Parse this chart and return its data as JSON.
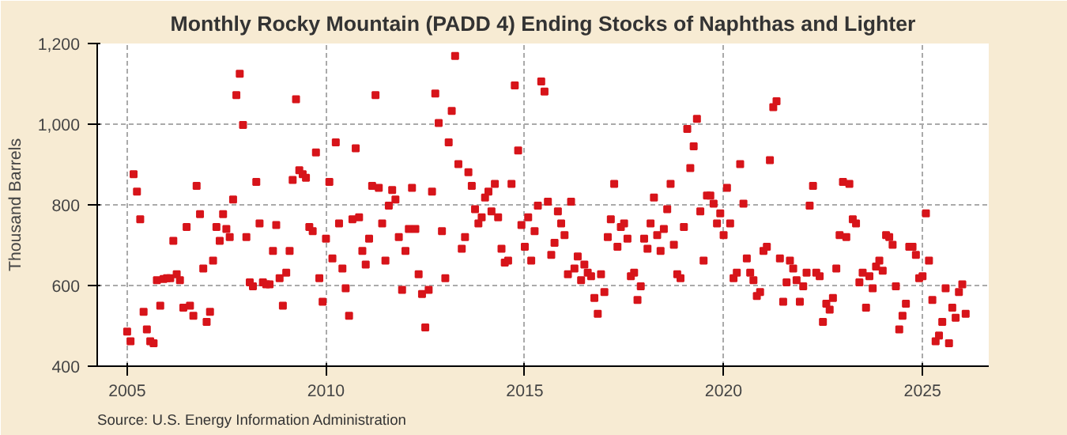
{
  "chart_data": {
    "type": "scatter",
    "title": "Monthly Rocky Mountain (PADD 4) Ending Stocks of Naphthas and Lighter",
    "ylabel": "Thousand Barrels",
    "annotations": [
      "Source: U.S. Energy Information Administration"
    ],
    "x": [
      "2005-01",
      "2005-02",
      "2005-03",
      "2005-04",
      "2005-05",
      "2005-06",
      "2005-07",
      "2005-08",
      "2005-09",
      "2005-10",
      "2005-11",
      "2005-12",
      "2006-01",
      "2006-02",
      "2006-03",
      "2006-04",
      "2006-05",
      "2006-06",
      "2006-07",
      "2006-08",
      "2006-09",
      "2006-10",
      "2006-11",
      "2006-12",
      "2007-01",
      "2007-02",
      "2007-03",
      "2007-04",
      "2007-05",
      "2007-06",
      "2007-07",
      "2007-08",
      "2007-09",
      "2007-10",
      "2007-11",
      "2007-12",
      "2008-01",
      "2008-02",
      "2008-03",
      "2008-04",
      "2008-05",
      "2008-06",
      "2008-07",
      "2008-08",
      "2008-09",
      "2008-10",
      "2008-11",
      "2008-12",
      "2009-01",
      "2009-02",
      "2009-03",
      "2009-04",
      "2009-05",
      "2009-06",
      "2009-07",
      "2009-08",
      "2009-09",
      "2009-10",
      "2009-11",
      "2009-12",
      "2010-01",
      "2010-02",
      "2010-03",
      "2010-04",
      "2010-05",
      "2010-06",
      "2010-07",
      "2010-08",
      "2010-09",
      "2010-10",
      "2010-11",
      "2010-12",
      "2011-01",
      "2011-02",
      "2011-03",
      "2011-04",
      "2011-05",
      "2011-06",
      "2011-07",
      "2011-08",
      "2011-09",
      "2011-10",
      "2011-11",
      "2011-12",
      "2012-01",
      "2012-02",
      "2012-03",
      "2012-04",
      "2012-05",
      "2012-06",
      "2012-07",
      "2012-08",
      "2012-09",
      "2012-10",
      "2012-11",
      "2012-12",
      "2013-01",
      "2013-02",
      "2013-03",
      "2013-04",
      "2013-05",
      "2013-06",
      "2013-07",
      "2013-08",
      "2013-09",
      "2013-10",
      "2013-11",
      "2013-12",
      "2014-01",
      "2014-02",
      "2014-03",
      "2014-04",
      "2014-05",
      "2014-06",
      "2014-07",
      "2014-08",
      "2014-09",
      "2014-10",
      "2014-11",
      "2014-12",
      "2015-01",
      "2015-02",
      "2015-03",
      "2015-04",
      "2015-05",
      "2015-06",
      "2015-07",
      "2015-08",
      "2015-09",
      "2015-10",
      "2015-11",
      "2015-12",
      "2016-01",
      "2016-02",
      "2016-03",
      "2016-04",
      "2016-05",
      "2016-06",
      "2016-07",
      "2016-08",
      "2016-09",
      "2016-10",
      "2016-11",
      "2016-12",
      "2017-01",
      "2017-02",
      "2017-03",
      "2017-04",
      "2017-05",
      "2017-06",
      "2017-07",
      "2017-08",
      "2017-09",
      "2017-10",
      "2017-11",
      "2017-12",
      "2018-01",
      "2018-02",
      "2018-03",
      "2018-04",
      "2018-05",
      "2018-06",
      "2018-07",
      "2018-08",
      "2018-09",
      "2018-10",
      "2018-11",
      "2018-12",
      "2019-01",
      "2019-02",
      "2019-03",
      "2019-04",
      "2019-05",
      "2019-06",
      "2019-07",
      "2019-08",
      "2019-09",
      "2019-10",
      "2019-11",
      "2019-12",
      "2020-01",
      "2020-02",
      "2020-03",
      "2020-04",
      "2020-05",
      "2020-06",
      "2020-07",
      "2020-08",
      "2020-09",
      "2020-10",
      "2020-11",
      "2020-12",
      "2021-01",
      "2021-02",
      "2021-03",
      "2021-04",
      "2021-05",
      "2021-06",
      "2021-07",
      "2021-08",
      "2021-09",
      "2021-10",
      "2021-11",
      "2021-12",
      "2022-01",
      "2022-02",
      "2022-03",
      "2022-04",
      "2022-05",
      "2022-06",
      "2022-07",
      "2022-08",
      "2022-09",
      "2022-10",
      "2022-11",
      "2022-12",
      "2023-01",
      "2023-02",
      "2023-03",
      "2023-04",
      "2023-05",
      "2023-06",
      "2023-07",
      "2023-08",
      "2023-09",
      "2023-10",
      "2023-11",
      "2023-12",
      "2024-01",
      "2024-02",
      "2024-03",
      "2024-04",
      "2024-05",
      "2024-06",
      "2024-07",
      "2024-08",
      "2024-09",
      "2024-10",
      "2024-11",
      "2024-12",
      "2025-01",
      "2025-02",
      "2025-03",
      "2025-04",
      "2025-05",
      "2025-06",
      "2025-07",
      "2025-08",
      "2025-09",
      "2025-10",
      "2025-11",
      "2025-12",
      "2026-01",
      "2026-02"
    ],
    "series": [
      {
        "color": "#d7141a",
        "values": [
          486,
          462,
          876,
          833,
          764,
          535,
          491,
          462,
          457,
          613,
          550,
          616,
          618,
          618,
          711,
          628,
          613,
          545,
          745,
          550,
          525,
          847,
          777,
          642,
          510,
          535,
          662,
          745,
          711,
          777,
          740,
          720,
          813,
          1072,
          1125,
          998,
          720,
          608,
          598,
          857,
          754,
          608,
          603,
          603,
          686,
          750,
          618,
          550,
          632,
          686,
          862,
          1062,
          886,
          876,
          867,
          745,
          735,
          930,
          618,
          560,
          716,
          857,
          667,
          955,
          754,
          642,
          593,
          525,
          764,
          940,
          769,
          686,
          652,
          716,
          847,
          1072,
          842,
          754,
          662,
          798,
          837,
          813,
          720,
          589,
          686,
          740,
          842,
          740,
          628,
          579,
          496,
          589,
          833,
          1076,
          1003,
          735,
          618,
          955,
          1033,
          1169,
          901,
          691,
          720,
          881,
          847,
          789,
          754,
          769,
          818,
          833,
          784,
          852,
          769,
          691,
          657,
          662,
          852,
          1096,
          935,
          750,
          696,
          769,
          662,
          735,
          798,
          1106,
          1081,
          808,
          676,
          706,
          784,
          754,
          725,
          628,
          808,
          642,
          672,
          613,
          652,
          632,
          623,
          569,
          530,
          628,
          584,
          720,
          764,
          852,
          696,
          745,
          754,
          716,
          623,
          632,
          564,
          598,
          716,
          691,
          754,
          818,
          725,
          686,
          740,
          789,
          852,
          701,
          628,
          618,
          745,
          988,
          891,
          945,
          1013,
          784,
          662,
          823,
          823,
          803,
          754,
          779,
          725,
          842,
          754,
          618,
          632,
          901,
          803,
          667,
          632,
          613,
          574,
          584,
          686,
          696,
          911,
          1042,
          1057,
          667,
          560,
          608,
          662,
          642,
          613,
          560,
          598,
          632,
          798,
          847,
          632,
          623,
          510,
          555,
          540,
          569,
          642,
          725,
          857,
          720,
          852,
          764,
          754,
          608,
          632,
          545,
          623,
          593,
          647,
          662,
          637,
          725,
          720,
          701,
          598,
          491,
          525,
          555,
          696,
          696,
          676,
          618,
          623,
          779,
          662,
          564,
          462,
          476,
          510,
          593,
          457,
          545,
          520,
          584,
          603,
          530
        ]
      }
    ],
    "xlim": [
      "2004-04",
      "2026-09"
    ],
    "xticks": [
      "2005",
      "2010",
      "2015",
      "2020",
      "2025"
    ],
    "ylim": [
      400,
      1200
    ],
    "yticks": [
      {
        "value": 400,
        "label": "400"
      },
      {
        "value": 600,
        "label": "600"
      },
      {
        "value": 800,
        "label": "800"
      },
      {
        "value": 1000,
        "label": "1,000"
      },
      {
        "value": 1200,
        "label": "1,200"
      }
    ],
    "grid": true,
    "marker": "square"
  }
}
